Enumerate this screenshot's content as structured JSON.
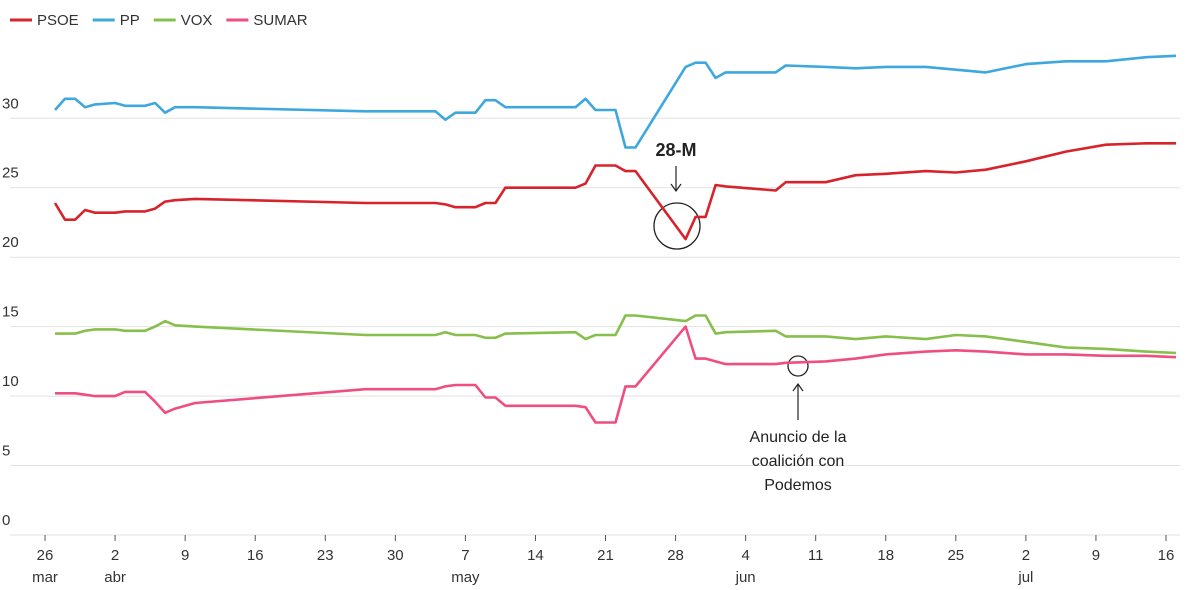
{
  "chart_data": {
    "type": "line",
    "x": [
      "03-27",
      "03-28",
      "03-29",
      "03-30",
      "03-31",
      "04-02",
      "04-03",
      "04-05",
      "04-06",
      "04-07",
      "04-08",
      "04-10",
      "04-27",
      "05-04",
      "05-05",
      "05-06",
      "05-08",
      "05-09",
      "05-10",
      "05-11",
      "05-18",
      "05-19",
      "05-20",
      "05-22",
      "05-23",
      "05-24",
      "05-29",
      "05-30",
      "05-31",
      "06-01",
      "06-02",
      "06-07",
      "06-08",
      "06-12",
      "06-15",
      "06-18",
      "06-22",
      "06-25",
      "06-28",
      "07-02",
      "07-06",
      "07-10",
      "07-14",
      "07-17"
    ],
    "series": [
      {
        "name": "PSOE",
        "color": "#d7232b",
        "values": [
          23.9,
          22.7,
          22.7,
          23.4,
          23.2,
          23.2,
          23.3,
          23.3,
          23.5,
          24.0,
          24.1,
          24.2,
          23.9,
          23.9,
          23.8,
          23.6,
          23.6,
          23.9,
          23.9,
          25.0,
          25.0,
          25.3,
          26.6,
          26.6,
          26.2,
          26.2,
          21.3,
          22.9,
          22.9,
          25.2,
          25.1,
          24.8,
          25.4,
          25.4,
          25.9,
          26.0,
          26.2,
          26.1,
          26.3,
          26.9,
          27.6,
          28.1,
          28.2,
          28.2
        ]
      },
      {
        "name": "PP",
        "color": "#3ea8de",
        "values": [
          30.6,
          31.4,
          31.4,
          30.8,
          31.0,
          31.1,
          30.9,
          30.9,
          31.1,
          30.4,
          30.8,
          30.8,
          30.5,
          30.5,
          29.9,
          30.4,
          30.4,
          31.3,
          31.3,
          30.8,
          30.8,
          31.4,
          30.6,
          30.6,
          27.9,
          27.9,
          33.7,
          34.0,
          34.0,
          32.9,
          33.3,
          33.3,
          33.8,
          33.7,
          33.6,
          33.7,
          33.7,
          33.5,
          33.3,
          33.9,
          34.1,
          34.1,
          34.4,
          34.5
        ]
      },
      {
        "name": "VOX",
        "color": "#86bf4b",
        "values": [
          14.5,
          14.5,
          14.5,
          14.7,
          14.8,
          14.8,
          14.7,
          14.7,
          15.0,
          15.4,
          15.1,
          15.0,
          14.4,
          14.4,
          14.6,
          14.4,
          14.4,
          14.2,
          14.2,
          14.5,
          14.6,
          14.1,
          14.4,
          14.4,
          15.8,
          15.8,
          15.4,
          15.8,
          15.8,
          14.5,
          14.6,
          14.7,
          14.3,
          14.3,
          14.1,
          14.3,
          14.1,
          14.4,
          14.3,
          13.9,
          13.5,
          13.4,
          13.2,
          13.1
        ]
      },
      {
        "name": "SUMAR",
        "color": "#ee4f80",
        "values": [
          10.2,
          10.2,
          10.2,
          10.1,
          10.0,
          10.0,
          10.3,
          10.3,
          9.6,
          8.8,
          9.1,
          9.5,
          10.5,
          10.5,
          10.7,
          10.8,
          10.8,
          9.9,
          9.9,
          9.3,
          9.3,
          9.2,
          8.1,
          8.1,
          10.7,
          10.7,
          15.0,
          12.7,
          12.7,
          12.5,
          12.3,
          12.3,
          12.4,
          12.5,
          12.7,
          13.0,
          13.2,
          13.3,
          13.2,
          13.0,
          13.0,
          12.9,
          12.9,
          12.8
        ]
      }
    ],
    "xlim": [
      "03-23",
      "07-17"
    ],
    "xticks": [
      {
        "value": "03-26",
        "label": "26"
      },
      {
        "value": "04-02",
        "label": "2"
      },
      {
        "value": "04-09",
        "label": "9"
      },
      {
        "value": "04-16",
        "label": "16"
      },
      {
        "value": "04-23",
        "label": "23"
      },
      {
        "value": "04-30",
        "label": "30"
      },
      {
        "value": "05-07",
        "label": "7"
      },
      {
        "value": "05-14",
        "label": "14"
      },
      {
        "value": "05-21",
        "label": "21"
      },
      {
        "value": "05-28",
        "label": "28"
      },
      {
        "value": "06-04",
        "label": "4"
      },
      {
        "value": "06-11",
        "label": "11"
      },
      {
        "value": "06-18",
        "label": "18"
      },
      {
        "value": "06-25",
        "label": "25"
      },
      {
        "value": "07-02",
        "label": "2"
      },
      {
        "value": "07-09",
        "label": "9"
      },
      {
        "value": "07-16",
        "label": "16"
      }
    ],
    "month_labels": [
      {
        "value": "03-26",
        "label": "mar"
      },
      {
        "value": "04-02",
        "label": "abr"
      },
      {
        "value": "05-07",
        "label": "may"
      },
      {
        "value": "06-04",
        "label": "jun"
      },
      {
        "value": "07-02",
        "label": "jul"
      }
    ],
    "ylim": [
      0,
      36.5
    ],
    "yticks": [
      0,
      5,
      10,
      15,
      20,
      25,
      30
    ],
    "grid": true,
    "legend": "top-left",
    "annotations": [
      {
        "text": "28-M"
      },
      {
        "lines": [
          "Anuncio de la",
          "coalición con",
          "Podemos"
        ]
      }
    ]
  }
}
